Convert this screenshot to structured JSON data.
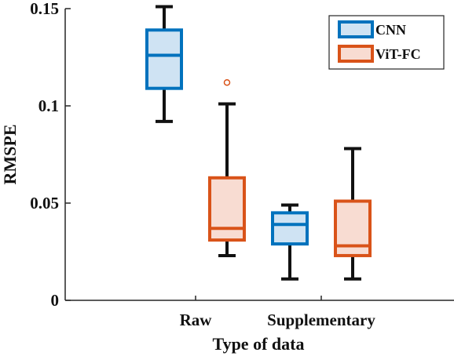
{
  "chart_data": {
    "type": "boxplot",
    "title": "",
    "xlabel": "Type of data",
    "ylabel": "RMSPE",
    "categories": [
      "Raw",
      "Supplementary"
    ],
    "ylim": [
      0,
      0.15
    ],
    "yticks": [
      0,
      0.05,
      0.1,
      0.15
    ],
    "ytick_labels": [
      "0",
      "0.05",
      "0.1",
      "0.15"
    ],
    "grid": false,
    "legend_position": "top-right",
    "series": [
      {
        "name": "CNN",
        "color": "#0072bd",
        "fill": "#cfe3f3",
        "boxes": [
          {
            "category": "Raw",
            "min": 0.092,
            "q1": 0.109,
            "median": 0.126,
            "q3": 0.139,
            "max": 0.151,
            "outliers": []
          },
          {
            "category": "Supplementary",
            "min": 0.011,
            "q1": 0.029,
            "median": 0.039,
            "q3": 0.045,
            "max": 0.049,
            "outliers": []
          }
        ]
      },
      {
        "name": "ViT-FC",
        "color": "#d95319",
        "fill": "#f8dcd2",
        "boxes": [
          {
            "category": "Raw",
            "min": 0.023,
            "q1": 0.031,
            "median": 0.037,
            "q3": 0.063,
            "max": 0.101,
            "outliers": [
              0.112
            ]
          },
          {
            "category": "Supplementary",
            "min": 0.011,
            "q1": 0.023,
            "median": 0.028,
            "q3": 0.051,
            "max": 0.078,
            "outliers": []
          }
        ]
      }
    ]
  }
}
